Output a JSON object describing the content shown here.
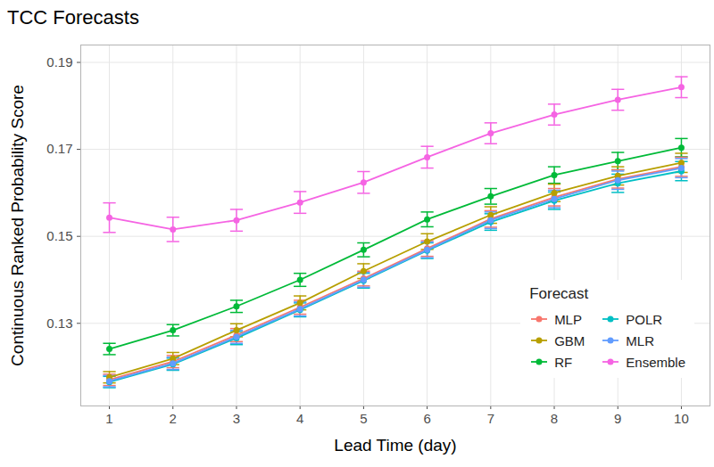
{
  "chart_data": {
    "type": "line",
    "title": "TCC Forecasts",
    "x_label": "Lead Time (day)",
    "y_label": "Continuous Ranked Probability Score",
    "legend_title": "Forecast",
    "x": [
      1,
      2,
      3,
      4,
      5,
      6,
      7,
      8,
      9,
      10
    ],
    "xlim": [
      0.55,
      10.45
    ],
    "xticks": [
      1,
      2,
      3,
      4,
      5,
      6,
      7,
      8,
      9,
      10
    ],
    "ylim": [
      0.111,
      0.194
    ],
    "yticks": [
      0.13,
      0.15,
      0.17,
      0.19
    ],
    "grid": true,
    "legend": "bottom-right",
    "marker": "circle",
    "series": [
      {
        "name": "MLP",
        "color": "#F8766D",
        "values": [
          0.117,
          0.1212,
          0.1273,
          0.1337,
          0.1403,
          0.1472,
          0.154,
          0.159,
          0.1632,
          0.166
        ],
        "errors": [
          0.0013,
          0.0014,
          0.0015,
          0.0016,
          0.0017,
          0.0018,
          0.0019,
          0.002,
          0.0021,
          0.0022
        ]
      },
      {
        "name": "GBM",
        "color": "#B79F00",
        "values": [
          0.1176,
          0.1219,
          0.1284,
          0.1347,
          0.142,
          0.1488,
          0.1549,
          0.16,
          0.1639,
          0.1669
        ],
        "errors": [
          0.0013,
          0.0014,
          0.0015,
          0.0016,
          0.0017,
          0.0018,
          0.0019,
          0.002,
          0.0021,
          0.0022
        ]
      },
      {
        "name": "RF",
        "color": "#00BA38",
        "values": [
          0.1241,
          0.1284,
          0.1339,
          0.14,
          0.1469,
          0.1539,
          0.1592,
          0.1641,
          0.1673,
          0.1704
        ],
        "errors": [
          0.0013,
          0.0013,
          0.0014,
          0.0015,
          0.0016,
          0.0017,
          0.0018,
          0.0019,
          0.002,
          0.0021
        ]
      },
      {
        "name": "POLR",
        "color": "#00BFC4",
        "values": [
          0.1165,
          0.1206,
          0.1266,
          0.1331,
          0.1398,
          0.1467,
          0.1533,
          0.1582,
          0.1622,
          0.165
        ],
        "errors": [
          0.0013,
          0.0014,
          0.0015,
          0.0016,
          0.0017,
          0.0018,
          0.0019,
          0.002,
          0.0021,
          0.0022
        ]
      },
      {
        "name": "MLR",
        "color": "#619CFF",
        "values": [
          0.1167,
          0.1208,
          0.1269,
          0.1333,
          0.14,
          0.1469,
          0.1537,
          0.1586,
          0.1629,
          0.1657
        ],
        "errors": [
          0.0013,
          0.0014,
          0.0015,
          0.0016,
          0.0017,
          0.0018,
          0.0019,
          0.002,
          0.0021,
          0.0022
        ]
      },
      {
        "name": "Ensemble",
        "color": "#F564E3",
        "values": [
          0.1543,
          0.1516,
          0.1537,
          0.1578,
          0.1624,
          0.1682,
          0.1737,
          0.178,
          0.1814,
          0.1843
        ],
        "errors": [
          0.0034,
          0.0028,
          0.0025,
          0.0025,
          0.0025,
          0.0025,
          0.0024,
          0.0024,
          0.0024,
          0.0024
        ]
      }
    ]
  }
}
